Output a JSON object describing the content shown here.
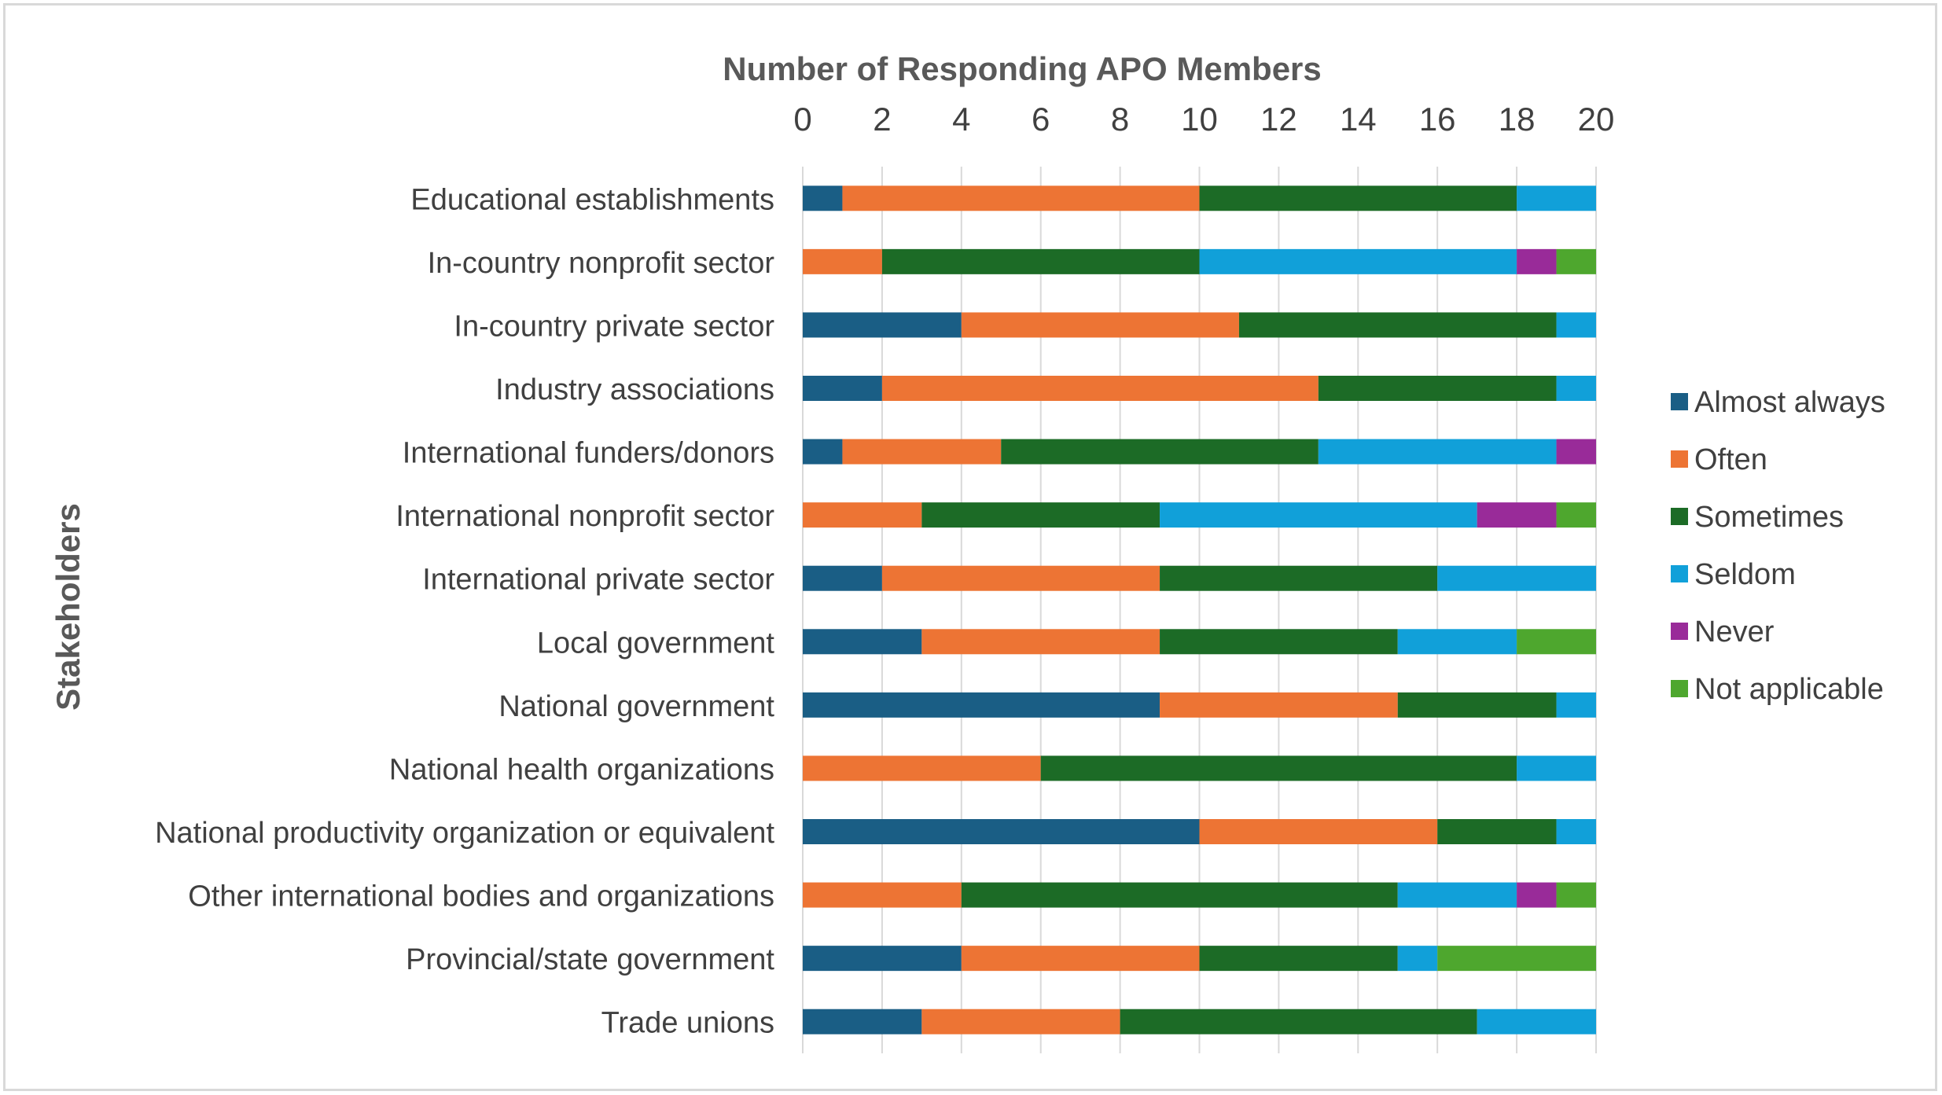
{
  "chart_data": {
    "type": "bar",
    "orientation": "horizontal",
    "stacked": true,
    "title": "",
    "xlabel": "Number of Responding APO Members",
    "ylabel": "Stakeholders",
    "xlim": [
      0,
      20
    ],
    "x_ticks": [
      "0",
      "2",
      "4",
      "6",
      "8",
      "10",
      "12",
      "14",
      "16",
      "18",
      "20"
    ],
    "x_axis_position": "top",
    "grid": true,
    "legend_position": "right",
    "categories": [
      "Educational establishments",
      "In-country nonprofit sector",
      "In-country private sector",
      "Industry associations",
      "International funders/donors",
      "International nonprofit sector",
      "International private sector",
      "Local government",
      "National government",
      "National health organizations",
      "National productivity organization or equivalent",
      "Other international bodies and organizations",
      "Provincial/state government",
      "Trade unions"
    ],
    "series": [
      {
        "name": "Almost always",
        "color": "#1a5e85",
        "values": [
          1,
          0,
          4,
          2,
          1,
          0,
          2,
          3,
          9,
          0,
          10,
          0,
          4,
          3
        ]
      },
      {
        "name": "Often",
        "color": "#ed7434",
        "values": [
          9,
          2,
          7,
          11,
          4,
          3,
          7,
          6,
          6,
          6,
          6,
          4,
          6,
          5
        ]
      },
      {
        "name": "Sometimes",
        "color": "#1c6b26",
        "values": [
          8,
          8,
          8,
          6,
          8,
          6,
          7,
          6,
          4,
          12,
          3,
          11,
          5,
          9
        ]
      },
      {
        "name": "Seldom",
        "color": "#11a0d9",
        "values": [
          2,
          8,
          1,
          1,
          6,
          8,
          4,
          3,
          1,
          2,
          1,
          3,
          1,
          3
        ]
      },
      {
        "name": "Never",
        "color": "#992b99",
        "values": [
          0,
          1,
          0,
          0,
          1,
          2,
          0,
          0,
          0,
          0,
          0,
          1,
          0,
          0
        ]
      },
      {
        "name": "Not applicable",
        "color": "#4ea72e",
        "values": [
          0,
          1,
          0,
          0,
          0,
          1,
          0,
          2,
          0,
          0,
          0,
          1,
          4,
          0
        ]
      }
    ]
  }
}
